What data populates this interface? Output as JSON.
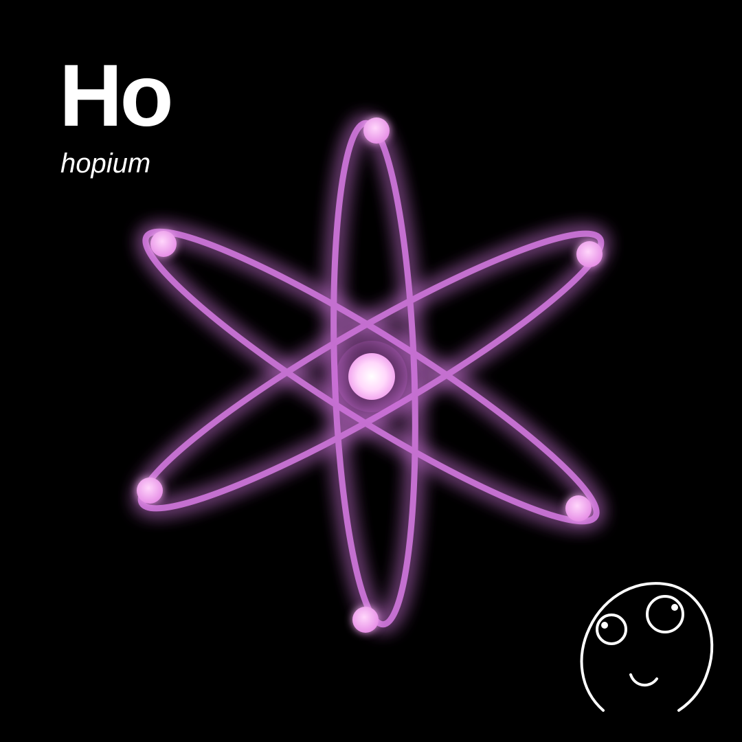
{
  "element": {
    "symbol": "Ho",
    "name": "hopium"
  },
  "colors": {
    "background": "#000000",
    "text": "#ffffff",
    "orbit": "#c46fd0",
    "orbit_glow": "#b13ccf",
    "electron": "#f2a8f0",
    "nucleus": "#ffe0ff",
    "face_stroke": "#ffffff"
  },
  "icons": {
    "atom": "atom-icon",
    "face": "hopeful-face-icon"
  }
}
